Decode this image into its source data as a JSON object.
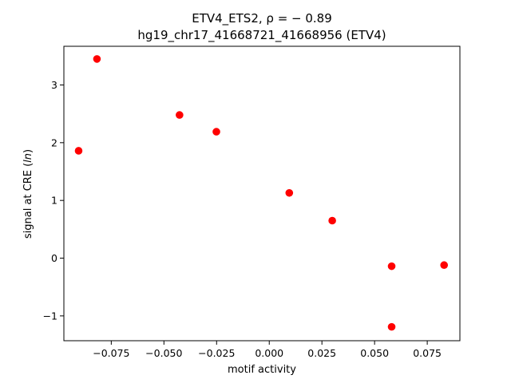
{
  "chart_data": {
    "type": "scatter",
    "title_line1": "ETV4_ETS2, ρ = − 0.89",
    "title_line2": "hg19_chr17_41668721_41668956 (ETV4)",
    "xlabel": "motif activity",
    "ylabel": "signal at CRE (ln)",
    "xlim": [
      -0.0975,
      0.0905
    ],
    "ylim": [
      -1.43,
      3.67
    ],
    "xticks": [
      -0.075,
      -0.05,
      -0.025,
      0.0,
      0.025,
      0.05,
      0.075
    ],
    "xtick_labels": [
      "−0.075",
      "−0.050",
      "−0.025",
      "0.000",
      "0.025",
      "0.050",
      "0.075"
    ],
    "yticks": [
      -1,
      0,
      1,
      2,
      3
    ],
    "ytick_labels": [
      "−1",
      "0",
      "1",
      "2",
      "3"
    ],
    "grid": false,
    "marker_color": "#ff0000",
    "points": [
      {
        "x": -0.0905,
        "y": 1.86
      },
      {
        "x": -0.0818,
        "y": 3.45
      },
      {
        "x": -0.0426,
        "y": 2.48
      },
      {
        "x": -0.0251,
        "y": 2.19
      },
      {
        "x": 0.0095,
        "y": 1.13
      },
      {
        "x": 0.0299,
        "y": 0.65
      },
      {
        "x": 0.0581,
        "y": -0.14
      },
      {
        "x": 0.0581,
        "y": -1.19
      },
      {
        "x": 0.083,
        "y": -0.12
      }
    ]
  }
}
